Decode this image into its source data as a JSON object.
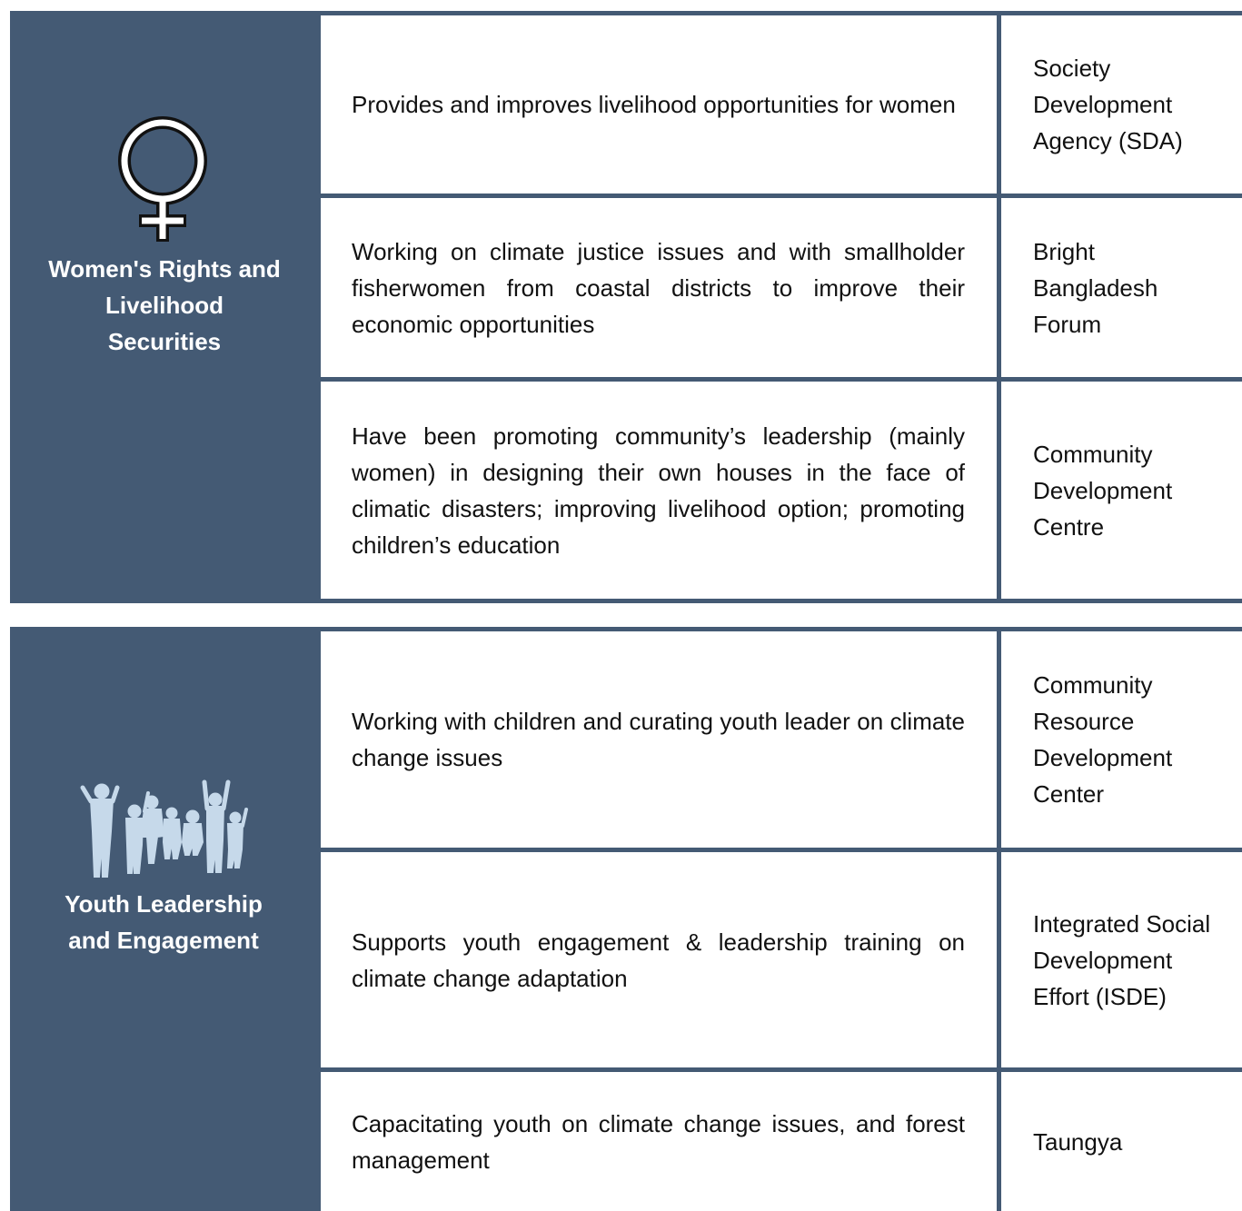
{
  "sections": [
    {
      "title": "Women's Rights and Livelihood Securities",
      "rows": [
        {
          "description": "Provides and improves livelihood opportunities for women",
          "organization": "Society Development Agency (SDA)"
        },
        {
          "description": "Working on climate justice issues and with smallholder fisherwomen from coastal districts to improve their economic opportunities",
          "organization": "Bright Bangladesh Forum"
        },
        {
          "description": "Have been promoting community’s leadership (mainly women) in designing their own houses in the face of climatic disasters; improving livelihood option; promoting children’s education",
          "organization": "Community Development Centre"
        }
      ]
    },
    {
      "title": "Youth Leadership and Engagement",
      "rows": [
        {
          "description": "Working with children and curating youth leader on climate change issues",
          "organization": "Community Resource Development Center"
        },
        {
          "description": "Supports youth engagement & leadership training on climate change adaptation",
          "organization": "Integrated Social Development Effort (ISDE)"
        },
        {
          "description": "Capacitating youth on climate change issues, and forest management",
          "organization": "Taungya"
        }
      ]
    }
  ]
}
